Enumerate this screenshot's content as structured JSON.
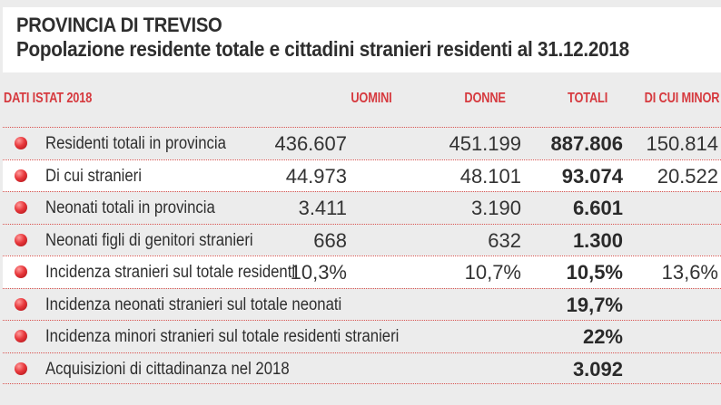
{
  "header": {
    "title": "PROVINCIA DI TREVISO",
    "subtitle": "Popolazione residente totale e cittadini stranieri residenti al 31.12.2018"
  },
  "table": {
    "columns": [
      "DATI ISTAT 2018",
      "UOMINI",
      "DONNE",
      "TOTALI",
      "DI CUI MINOR"
    ],
    "rows": [
      {
        "label": "Residenti totali in provincia",
        "uomini": "436.607",
        "donne": "451.199",
        "totali": "887.806",
        "minori": "150.814",
        "highlight": false
      },
      {
        "label": "Di cui stranieri",
        "uomini": "44.973",
        "donne": "48.101",
        "totali": "93.074",
        "minori": "20.522",
        "highlight": true
      },
      {
        "label": "Neonati totali in provincia",
        "uomini": "3.411",
        "donne": "3.190",
        "totali": "6.601",
        "minori": "",
        "highlight": false
      },
      {
        "label": "Neonati figli di genitori stranieri",
        "uomini": "668",
        "donne": "632",
        "totali": "1.300",
        "minori": "",
        "highlight": false
      },
      {
        "label": "Incidenza stranieri sul totale residenti",
        "uomini": "10,3%",
        "donne": "10,7%",
        "totali": "10,5%",
        "minori": "13,6%",
        "highlight": true
      },
      {
        "label": "Incidenza neonati stranieri sul totale neonati",
        "uomini": "",
        "donne": "",
        "totali": "19,7%",
        "minori": "",
        "highlight": false
      },
      {
        "label": "Incidenza minori stranieri sul totale residenti stranieri",
        "uomini": "",
        "donne": "",
        "totali": "22%",
        "minori": "",
        "highlight": false
      },
      {
        "label": "Acquisizioni di cittadinanza nel 2018",
        "uomini": "",
        "donne": "",
        "totali": "3.092",
        "minori": "",
        "highlight": false
      }
    ]
  },
  "colors": {
    "accent": "#d63a3f",
    "bullet": "#e8383c",
    "background": "#ececec",
    "highlight_row": "#ffffff",
    "text": "#2e2e2e"
  },
  "icons": {
    "bullet": "red-sphere-bullet-icon"
  }
}
